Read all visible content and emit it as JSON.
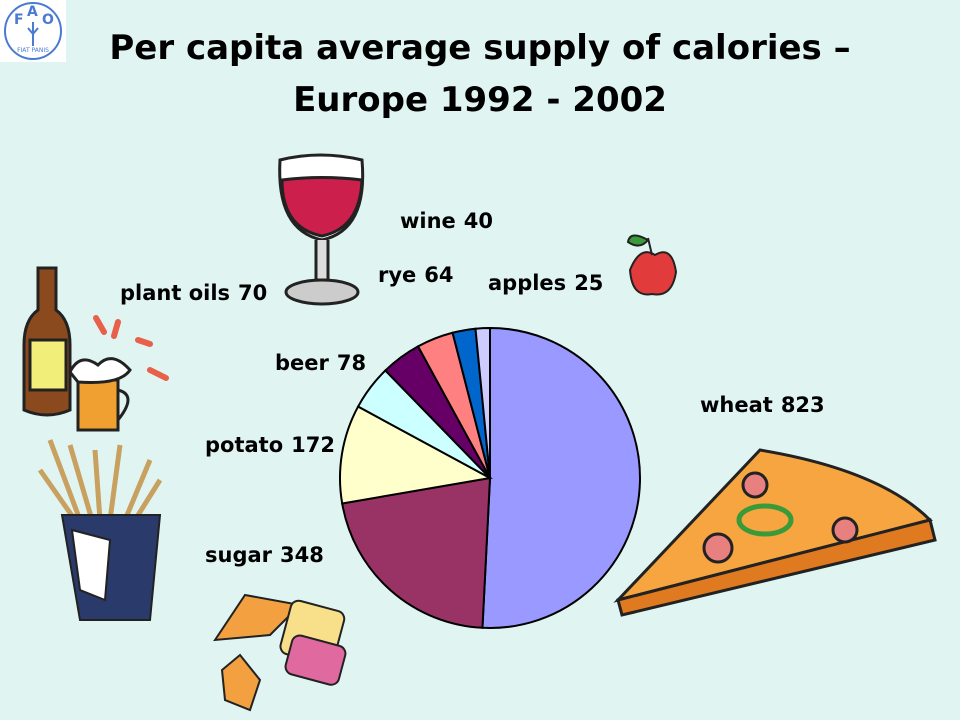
{
  "logo": {
    "letters": [
      "F",
      "A",
      "O"
    ],
    "motto": "FIAT PANIS"
  },
  "chart_data": {
    "type": "pie",
    "title": "Per capita average supply of calories – Europe 1992 - 2002",
    "categories": [
      "wheat",
      "sugar",
      "potato",
      "beer",
      "plant oils",
      "rye",
      "wine",
      "apples"
    ],
    "values": [
      823,
      348,
      172,
      78,
      70,
      64,
      40,
      25
    ],
    "colors": [
      "#9999ff",
      "#993366",
      "#ffffcc",
      "#ccffff",
      "#660066",
      "#ff8080",
      "#0066cc",
      "#ccccff"
    ],
    "start_angle": 0,
    "direction": "clockwise"
  }
}
